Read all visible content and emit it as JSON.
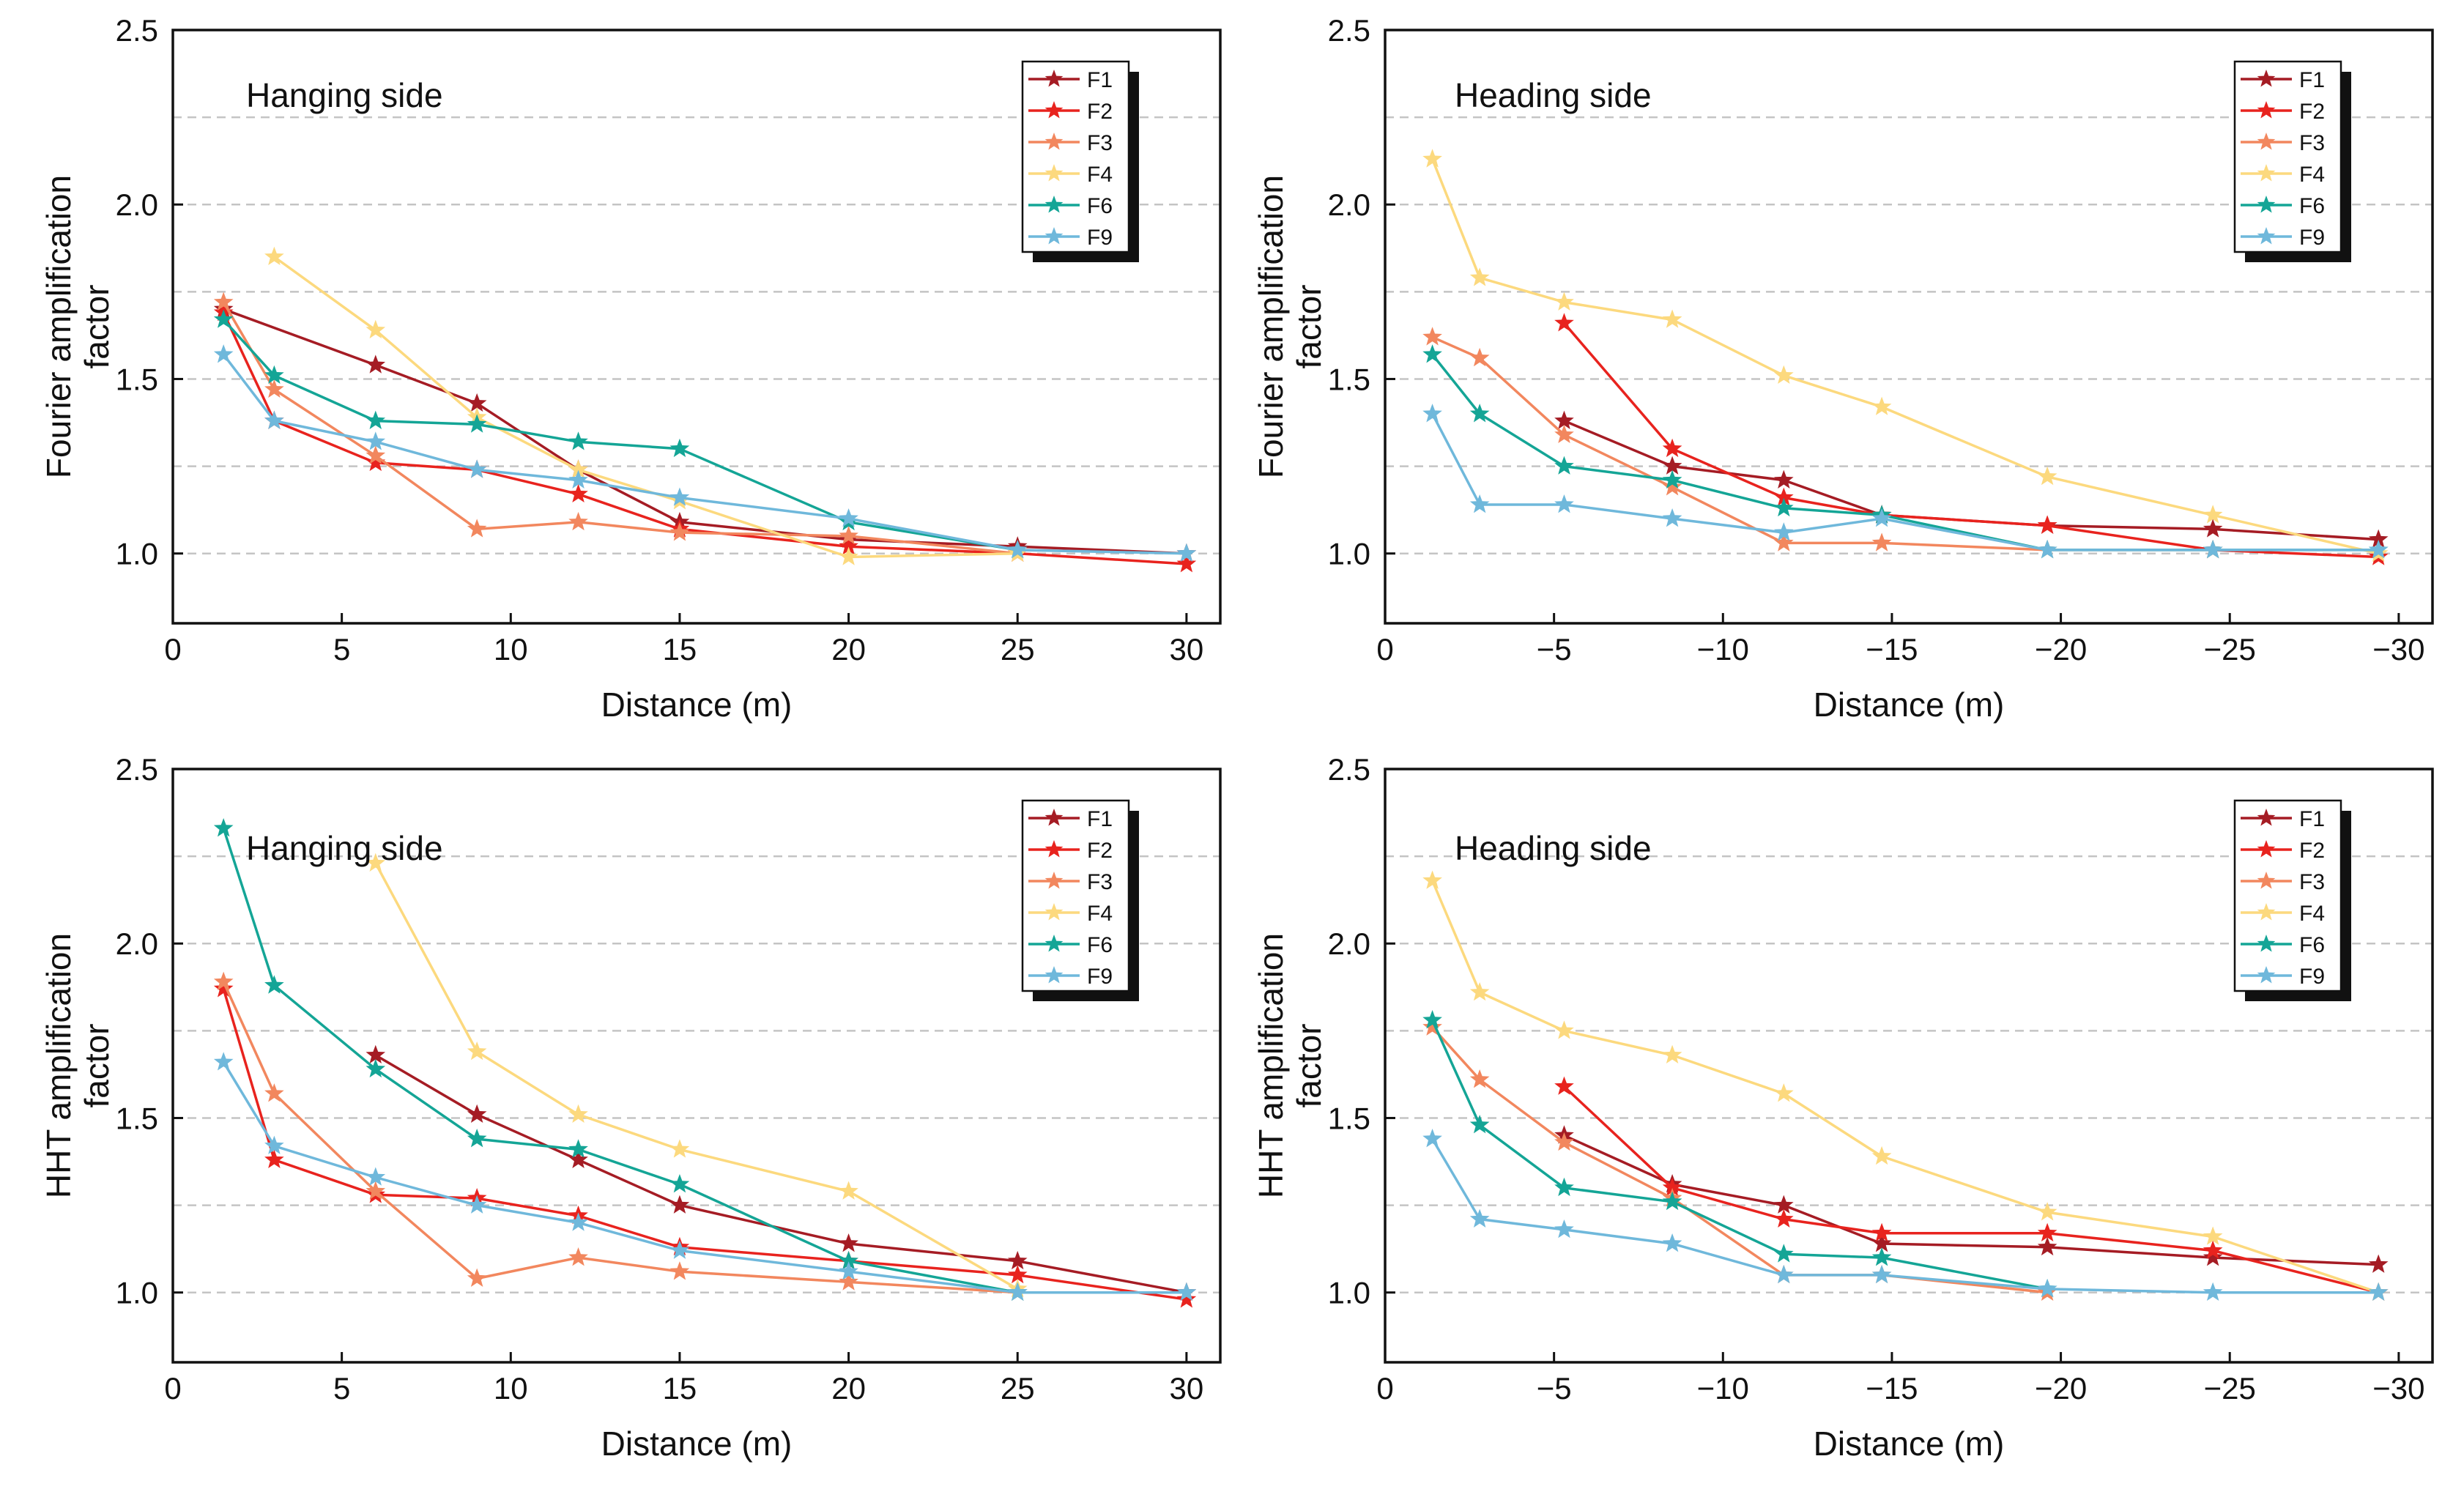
{
  "chart_data": [
    {
      "type": "line",
      "panel_label": "Hanging side",
      "xlabel": "Distance (m)",
      "ylabel": [
        "Fourier amplification",
        "factor"
      ],
      "xlim": [
        0,
        31
      ],
      "ylim": [
        0.8,
        2.5
      ],
      "xticks": [
        0,
        5,
        10,
        15,
        20,
        25,
        30
      ],
      "xtick_labels": [
        "0",
        "5",
        "10",
        "15",
        "20",
        "25",
        "30"
      ],
      "yticks": [
        1.0,
        1.5,
        2.0,
        2.5
      ],
      "ytick_labels": [
        "1.0",
        "1.5",
        "2.0",
        "2.5"
      ],
      "gridlines": [
        1.0,
        1.25,
        1.5,
        1.75,
        2.0,
        2.25
      ],
      "legend_position": "top-right",
      "series": [
        {
          "name": "F1",
          "color": "#A51C24",
          "x": [
            1.5,
            6,
            9,
            12,
            15,
            20,
            25,
            30
          ],
          "y": [
            1.7,
            1.54,
            1.43,
            1.24,
            1.09,
            1.04,
            1.02,
            1.0
          ]
        },
        {
          "name": "F2",
          "color": "#E8231E",
          "x": [
            1.5,
            3,
            6,
            9,
            12,
            15,
            20,
            25,
            30
          ],
          "y": [
            1.69,
            1.38,
            1.26,
            1.24,
            1.17,
            1.07,
            1.02,
            1.0,
            0.97
          ]
        },
        {
          "name": "F3",
          "color": "#F2875E",
          "x": [
            1.5,
            3,
            6,
            9,
            12,
            15,
            20,
            25
          ],
          "y": [
            1.72,
            1.47,
            1.28,
            1.07,
            1.09,
            1.06,
            1.05,
            1.0
          ]
        },
        {
          "name": "F4",
          "color": "#FCD97E",
          "x": [
            3,
            6,
            9,
            12,
            15,
            20,
            25
          ],
          "y": [
            1.85,
            1.64,
            1.39,
            1.24,
            1.15,
            0.99,
            1.0
          ]
        },
        {
          "name": "F6",
          "color": "#14A596",
          "x": [
            1.5,
            3,
            6,
            9,
            12,
            15,
            20,
            25
          ],
          "y": [
            1.67,
            1.51,
            1.38,
            1.37,
            1.32,
            1.3,
            1.09,
            1.01
          ]
        },
        {
          "name": "F9",
          "color": "#6FB8DB",
          "x": [
            1.5,
            3,
            6,
            9,
            12,
            15,
            20,
            25,
            30
          ],
          "y": [
            1.57,
            1.38,
            1.32,
            1.24,
            1.21,
            1.16,
            1.1,
            1.01,
            1.0
          ]
        }
      ]
    },
    {
      "type": "line",
      "panel_label": "Heading side",
      "xlabel": "Distance (m)",
      "ylabel": [
        "Fourier amplification",
        "factor"
      ],
      "xlim": [
        0,
        -31
      ],
      "ylim": [
        0.8,
        2.5
      ],
      "xticks": [
        0,
        -5,
        -10,
        -15,
        -20,
        -25,
        -30
      ],
      "xtick_labels": [
        "0",
        "−5",
        "−10",
        "−15",
        "−20",
        "−25",
        "−30"
      ],
      "yticks": [
        1.0,
        1.5,
        2.0,
        2.5
      ],
      "ytick_labels": [
        "1.0",
        "1.5",
        "2.0",
        "2.5"
      ],
      "gridlines": [
        1.0,
        1.25,
        1.5,
        1.75,
        2.0,
        2.25
      ],
      "legend_position": "top-right",
      "series": [
        {
          "name": "F1",
          "color": "#A51C24",
          "x": [
            -5.3,
            -8.5,
            -11.8,
            -14.7,
            -19.6,
            -24.5,
            -29.4
          ],
          "y": [
            1.38,
            1.25,
            1.21,
            1.11,
            1.08,
            1.07,
            1.04
          ]
        },
        {
          "name": "F2",
          "color": "#E8231E",
          "x": [
            -5.3,
            -8.5,
            -11.8,
            -14.7,
            -19.6,
            -24.5,
            -29.4
          ],
          "y": [
            1.66,
            1.3,
            1.16,
            1.11,
            1.08,
            1.01,
            0.99
          ]
        },
        {
          "name": "F3",
          "color": "#F2875E",
          "x": [
            -1.4,
            -2.8,
            -5.3,
            -8.5,
            -11.8,
            -14.7,
            -19.6,
            -24.5
          ],
          "y": [
            1.62,
            1.56,
            1.34,
            1.19,
            1.03,
            1.03,
            1.01,
            1.01
          ]
        },
        {
          "name": "F4",
          "color": "#FCD97E",
          "x": [
            -1.4,
            -2.8,
            -5.3,
            -8.5,
            -11.8,
            -14.7,
            -19.6,
            -24.5,
            -29.4
          ],
          "y": [
            2.13,
            1.79,
            1.72,
            1.67,
            1.51,
            1.42,
            1.22,
            1.11,
            1.0
          ]
        },
        {
          "name": "F6",
          "color": "#14A596",
          "x": [
            -1.4,
            -2.8,
            -5.3,
            -8.5,
            -11.8,
            -14.7,
            -19.6,
            -24.5,
            -29.4
          ],
          "y": [
            1.57,
            1.4,
            1.25,
            1.21,
            1.13,
            1.11,
            1.01,
            1.01,
            1.01
          ]
        },
        {
          "name": "F9",
          "color": "#6FB8DB",
          "x": [
            -1.4,
            -2.8,
            -5.3,
            -8.5,
            -11.8,
            -14.7,
            -19.6,
            -24.5,
            -29.4
          ],
          "y": [
            1.4,
            1.14,
            1.14,
            1.1,
            1.06,
            1.1,
            1.01,
            1.01,
            1.01
          ]
        }
      ]
    },
    {
      "type": "line",
      "panel_label": "Hanging side",
      "xlabel": "Distance (m)",
      "ylabel": [
        "HHT amplification",
        "factor"
      ],
      "xlim": [
        0,
        31
      ],
      "ylim": [
        0.8,
        2.5
      ],
      "xticks": [
        0,
        5,
        10,
        15,
        20,
        25,
        30
      ],
      "xtick_labels": [
        "0",
        "5",
        "10",
        "15",
        "20",
        "25",
        "30"
      ],
      "yticks": [
        1.0,
        1.5,
        2.0,
        2.5
      ],
      "ytick_labels": [
        "1.0",
        "1.5",
        "2.0",
        "2.5"
      ],
      "gridlines": [
        1.0,
        1.25,
        1.5,
        1.75,
        2.0,
        2.25
      ],
      "legend_position": "top-right",
      "series": [
        {
          "name": "F1",
          "color": "#A51C24",
          "x": [
            6,
            9,
            12,
            15,
            20,
            25,
            30
          ],
          "y": [
            1.68,
            1.51,
            1.38,
            1.25,
            1.14,
            1.09,
            1.0
          ]
        },
        {
          "name": "F2",
          "color": "#E8231E",
          "x": [
            1.5,
            3,
            6,
            9,
            12,
            15,
            20,
            25,
            30
          ],
          "y": [
            1.87,
            1.38,
            1.28,
            1.27,
            1.22,
            1.13,
            1.09,
            1.05,
            0.98
          ]
        },
        {
          "name": "F3",
          "color": "#F2875E",
          "x": [
            1.5,
            3,
            6,
            9,
            12,
            15,
            20,
            25
          ],
          "y": [
            1.89,
            1.57,
            1.29,
            1.04,
            1.1,
            1.06,
            1.03,
            1.0
          ]
        },
        {
          "name": "F4",
          "color": "#FCD97E",
          "x": [
            6,
            9,
            12,
            15,
            20,
            25
          ],
          "y": [
            2.23,
            1.69,
            1.51,
            1.41,
            1.29,
            1.01
          ]
        },
        {
          "name": "F6",
          "color": "#14A596",
          "x": [
            1.5,
            3,
            6,
            9,
            12,
            15,
            20,
            25
          ],
          "y": [
            2.33,
            1.88,
            1.64,
            1.44,
            1.41,
            1.31,
            1.09,
            1.0
          ]
        },
        {
          "name": "F9",
          "color": "#6FB8DB",
          "x": [
            1.5,
            3,
            6,
            9,
            12,
            15,
            20,
            25,
            30
          ],
          "y": [
            1.66,
            1.42,
            1.33,
            1.25,
            1.2,
            1.12,
            1.06,
            1.0,
            1.0
          ]
        }
      ]
    },
    {
      "type": "line",
      "panel_label": "Heading side",
      "xlabel": "Distance (m)",
      "ylabel": [
        "HHT amplification",
        "factor"
      ],
      "xlim": [
        0,
        -31
      ],
      "ylim": [
        0.8,
        2.5
      ],
      "xticks": [
        0,
        -5,
        -10,
        -15,
        -20,
        -25,
        -30
      ],
      "xtick_labels": [
        "0",
        "−5",
        "−10",
        "−15",
        "−20",
        "−25",
        "−30"
      ],
      "yticks": [
        1.0,
        1.5,
        2.0,
        2.5
      ],
      "ytick_labels": [
        "1.0",
        "1.5",
        "2.0",
        "2.5"
      ],
      "gridlines": [
        1.0,
        1.25,
        1.5,
        1.75,
        2.0,
        2.25
      ],
      "legend_position": "top-right",
      "series": [
        {
          "name": "F1",
          "color": "#A51C24",
          "x": [
            -5.3,
            -8.5,
            -11.8,
            -14.7,
            -19.6,
            -24.5,
            -29.4
          ],
          "y": [
            1.45,
            1.31,
            1.25,
            1.14,
            1.13,
            1.1,
            1.08
          ]
        },
        {
          "name": "F2",
          "color": "#E8231E",
          "x": [
            -5.3,
            -8.5,
            -11.8,
            -14.7,
            -19.6,
            -24.5,
            -29.4
          ],
          "y": [
            1.59,
            1.3,
            1.21,
            1.17,
            1.17,
            1.12,
            1.0
          ]
        },
        {
          "name": "F3",
          "color": "#F2875E",
          "x": [
            -1.4,
            -2.8,
            -5.3,
            -8.5,
            -11.8,
            -14.7,
            -19.6
          ],
          "y": [
            1.76,
            1.61,
            1.43,
            1.27,
            1.05,
            1.05,
            1.0
          ]
        },
        {
          "name": "F4",
          "color": "#FCD97E",
          "x": [
            -1.4,
            -2.8,
            -5.3,
            -8.5,
            -11.8,
            -14.7,
            -19.6,
            -24.5,
            -29.4
          ],
          "y": [
            2.18,
            1.86,
            1.75,
            1.68,
            1.57,
            1.39,
            1.23,
            1.16,
            1.0
          ]
        },
        {
          "name": "F6",
          "color": "#14A596",
          "x": [
            -1.4,
            -2.8,
            -5.3,
            -8.5,
            -11.8,
            -14.7,
            -19.6
          ],
          "y": [
            1.78,
            1.48,
            1.3,
            1.26,
            1.11,
            1.1,
            1.01
          ]
        },
        {
          "name": "F9",
          "color": "#6FB8DB",
          "x": [
            -1.4,
            -2.8,
            -5.3,
            -8.5,
            -11.8,
            -14.7,
            -19.6,
            -24.5,
            -29.4
          ],
          "y": [
            1.44,
            1.21,
            1.18,
            1.14,
            1.05,
            1.05,
            1.01,
            1.0,
            1.0
          ]
        }
      ]
    }
  ]
}
